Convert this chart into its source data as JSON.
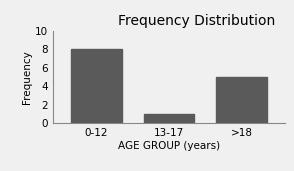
{
  "categories": [
    "0-12",
    "13-17",
    ">18"
  ],
  "values": [
    8,
    1,
    5
  ],
  "bar_color": "#5a5a5a",
  "title": "Frequency Distribution",
  "xlabel": "AGE GROUP (years)",
  "ylabel": "Frequency",
  "ylim": [
    0,
    10
  ],
  "yticks": [
    0,
    2,
    4,
    6,
    8,
    10
  ],
  "title_fontsize": 10,
  "axis_label_fontsize": 7.5,
  "tick_fontsize": 7.5,
  "background_color": "#f0f0f0"
}
